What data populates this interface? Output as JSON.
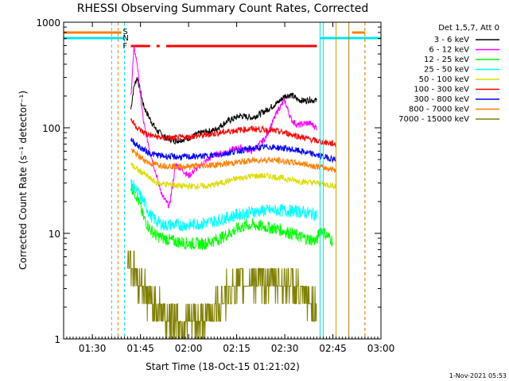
{
  "chart_data": {
    "type": "line",
    "title": "RHESSI Observing Summary Count Rates, Corrected",
    "xlabel": "Start Time (18-Oct-15 01:21:02)",
    "ylabel": "Corrected Count Rate (s⁻¹ detector⁻¹)",
    "yscale": "log",
    "ylim": [
      1,
      1000
    ],
    "xlim": [
      "01:21:02",
      "03:00:00"
    ],
    "x_ticks": [
      "01:30",
      "01:45",
      "02:00",
      "02:15",
      "02:30",
      "02:45",
      "03:00"
    ],
    "y_ticks": [
      "1",
      "10",
      "100",
      "1000"
    ],
    "legend": {
      "title": "Det 1,5,7, Att 0",
      "position": "right"
    },
    "flags": [
      {
        "label": "S",
        "color": "#ff7f00"
      },
      {
        "label": "N",
        "color": "#00e5ee"
      },
      {
        "label": "F",
        "color": "#ff0000"
      }
    ],
    "series": [
      {
        "name": "3 - 6 keV",
        "color": "#000000",
        "x": [
          "01:42",
          "01:43",
          "01:44",
          "01:45",
          "01:46",
          "01:48",
          "01:50",
          "01:53",
          "01:56",
          "02:00",
          "02:04",
          "02:08",
          "02:12",
          "02:16",
          "02:20",
          "02:24",
          "02:28",
          "02:30",
          "02:32",
          "02:34",
          "02:36",
          "02:38",
          "02:40"
        ],
        "values": [
          150,
          250,
          300,
          220,
          160,
          120,
          95,
          80,
          75,
          80,
          90,
          95,
          115,
          130,
          125,
          145,
          175,
          200,
          205,
          185,
          180,
          185,
          180
        ]
      },
      {
        "name": "6 - 12 keV",
        "color": "#ff00ff",
        "x": [
          "01:42",
          "01:43",
          "01:44",
          "01:45",
          "01:46",
          "01:48",
          "01:50",
          "01:52",
          "01:54",
          "01:56",
          "01:58",
          "02:00",
          "02:04",
          "02:08",
          "02:12",
          "02:16",
          "02:20",
          "02:24",
          "02:28",
          "02:30",
          "02:32",
          "02:34",
          "02:36",
          "02:38",
          "02:40"
        ],
        "values": [
          200,
          580,
          400,
          200,
          110,
          60,
          35,
          22,
          18,
          45,
          40,
          35,
          45,
          55,
          60,
          65,
          60,
          80,
          150,
          180,
          120,
          105,
          110,
          110,
          100
        ]
      },
      {
        "name": "12 - 25 keV",
        "color": "#00ff00",
        "x": [
          "01:42",
          "01:44",
          "01:46",
          "01:48",
          "01:50",
          "01:52",
          "01:55",
          "02:00",
          "02:05",
          "02:10",
          "02:15",
          "02:18",
          "02:20",
          "02:24",
          "02:28",
          "02:32",
          "02:36",
          "02:40",
          "02:41",
          "02:45"
        ],
        "values": [
          28,
          22,
          14,
          11,
          9.5,
          9,
          8.5,
          8,
          8,
          9,
          11,
          12,
          12,
          11.5,
          11,
          10,
          9,
          8.5,
          11,
          8.5
        ]
      },
      {
        "name": "25 - 50 keV",
        "color": "#00ffff",
        "x": [
          "01:42",
          "01:44",
          "01:46",
          "01:48",
          "01:50",
          "01:52",
          "01:55",
          "02:00",
          "02:05",
          "02:10",
          "02:15",
          "02:20",
          "02:25",
          "02:30",
          "02:35",
          "02:40"
        ],
        "values": [
          30,
          25,
          20,
          15,
          13,
          12,
          12,
          12,
          12.5,
          13.5,
          15,
          16,
          16.5,
          16.5,
          16,
          15
        ]
      },
      {
        "name": "50 - 100 keV",
        "color": "#dddd00",
        "x": [
          "01:42",
          "01:44",
          "01:46",
          "01:48",
          "01:50",
          "01:54",
          "01:58",
          "02:02",
          "02:06",
          "02:10",
          "02:15",
          "02:20",
          "02:25",
          "02:30",
          "02:35",
          "02:40",
          "02:46"
        ],
        "values": [
          45,
          40,
          37,
          33,
          30,
          29,
          28,
          28,
          28,
          30,
          33,
          35,
          35,
          33,
          31,
          30,
          28
        ]
      },
      {
        "name": "100 - 300 keV",
        "color": "#ff0000",
        "x": [
          "01:42",
          "01:44",
          "01:46",
          "01:48",
          "01:52",
          "01:56",
          "02:00",
          "02:05",
          "02:10",
          "02:15",
          "02:20",
          "02:25",
          "02:30",
          "02:35",
          "02:40",
          "02:46"
        ],
        "values": [
          120,
          100,
          90,
          85,
          80,
          80,
          82,
          85,
          90,
          95,
          98,
          95,
          90,
          82,
          75,
          70
        ]
      },
      {
        "name": "300 - 800 keV",
        "color": "#0000ff",
        "x": [
          "01:42",
          "01:44",
          "01:46",
          "01:48",
          "01:52",
          "01:56",
          "02:00",
          "02:05",
          "02:10",
          "02:15",
          "02:20",
          "02:25",
          "02:30",
          "02:35",
          "02:40",
          "02:46"
        ],
        "values": [
          78,
          68,
          62,
          57,
          54,
          53,
          53,
          54,
          56,
          60,
          64,
          66,
          64,
          60,
          55,
          50
        ]
      },
      {
        "name": "800 - 7000 keV",
        "color": "#ff7f00",
        "x": [
          "01:42",
          "01:44",
          "01:46",
          "01:48",
          "01:52",
          "01:56",
          "02:00",
          "02:05",
          "02:10",
          "02:15",
          "02:20",
          "02:25",
          "02:30",
          "02:35",
          "02:40",
          "02:46"
        ],
        "values": [
          62,
          55,
          50,
          46,
          44,
          43,
          43,
          44,
          45,
          47,
          49,
          50,
          48,
          46,
          43,
          40
        ]
      },
      {
        "name": "7000 - 15000 keV",
        "color": "#808000",
        "x": [
          "01:41",
          "01:43",
          "01:45",
          "01:47",
          "01:50",
          "01:53",
          "01:56",
          "02:00",
          "02:04",
          "02:08",
          "02:10",
          "02:14",
          "02:18",
          "02:22",
          "02:26",
          "02:30",
          "02:33",
          "02:36",
          "02:40"
        ],
        "values": [
          6,
          4.5,
          3.5,
          2.5,
          2.0,
          1.6,
          1.5,
          1.4,
          1.5,
          1.8,
          2.2,
          3.0,
          3.5,
          3.5,
          3.5,
          3.5,
          3.0,
          2.5,
          2.0
        ]
      }
    ]
  },
  "footer": {
    "timestamp": "1-Nov-2021 05:53"
  }
}
